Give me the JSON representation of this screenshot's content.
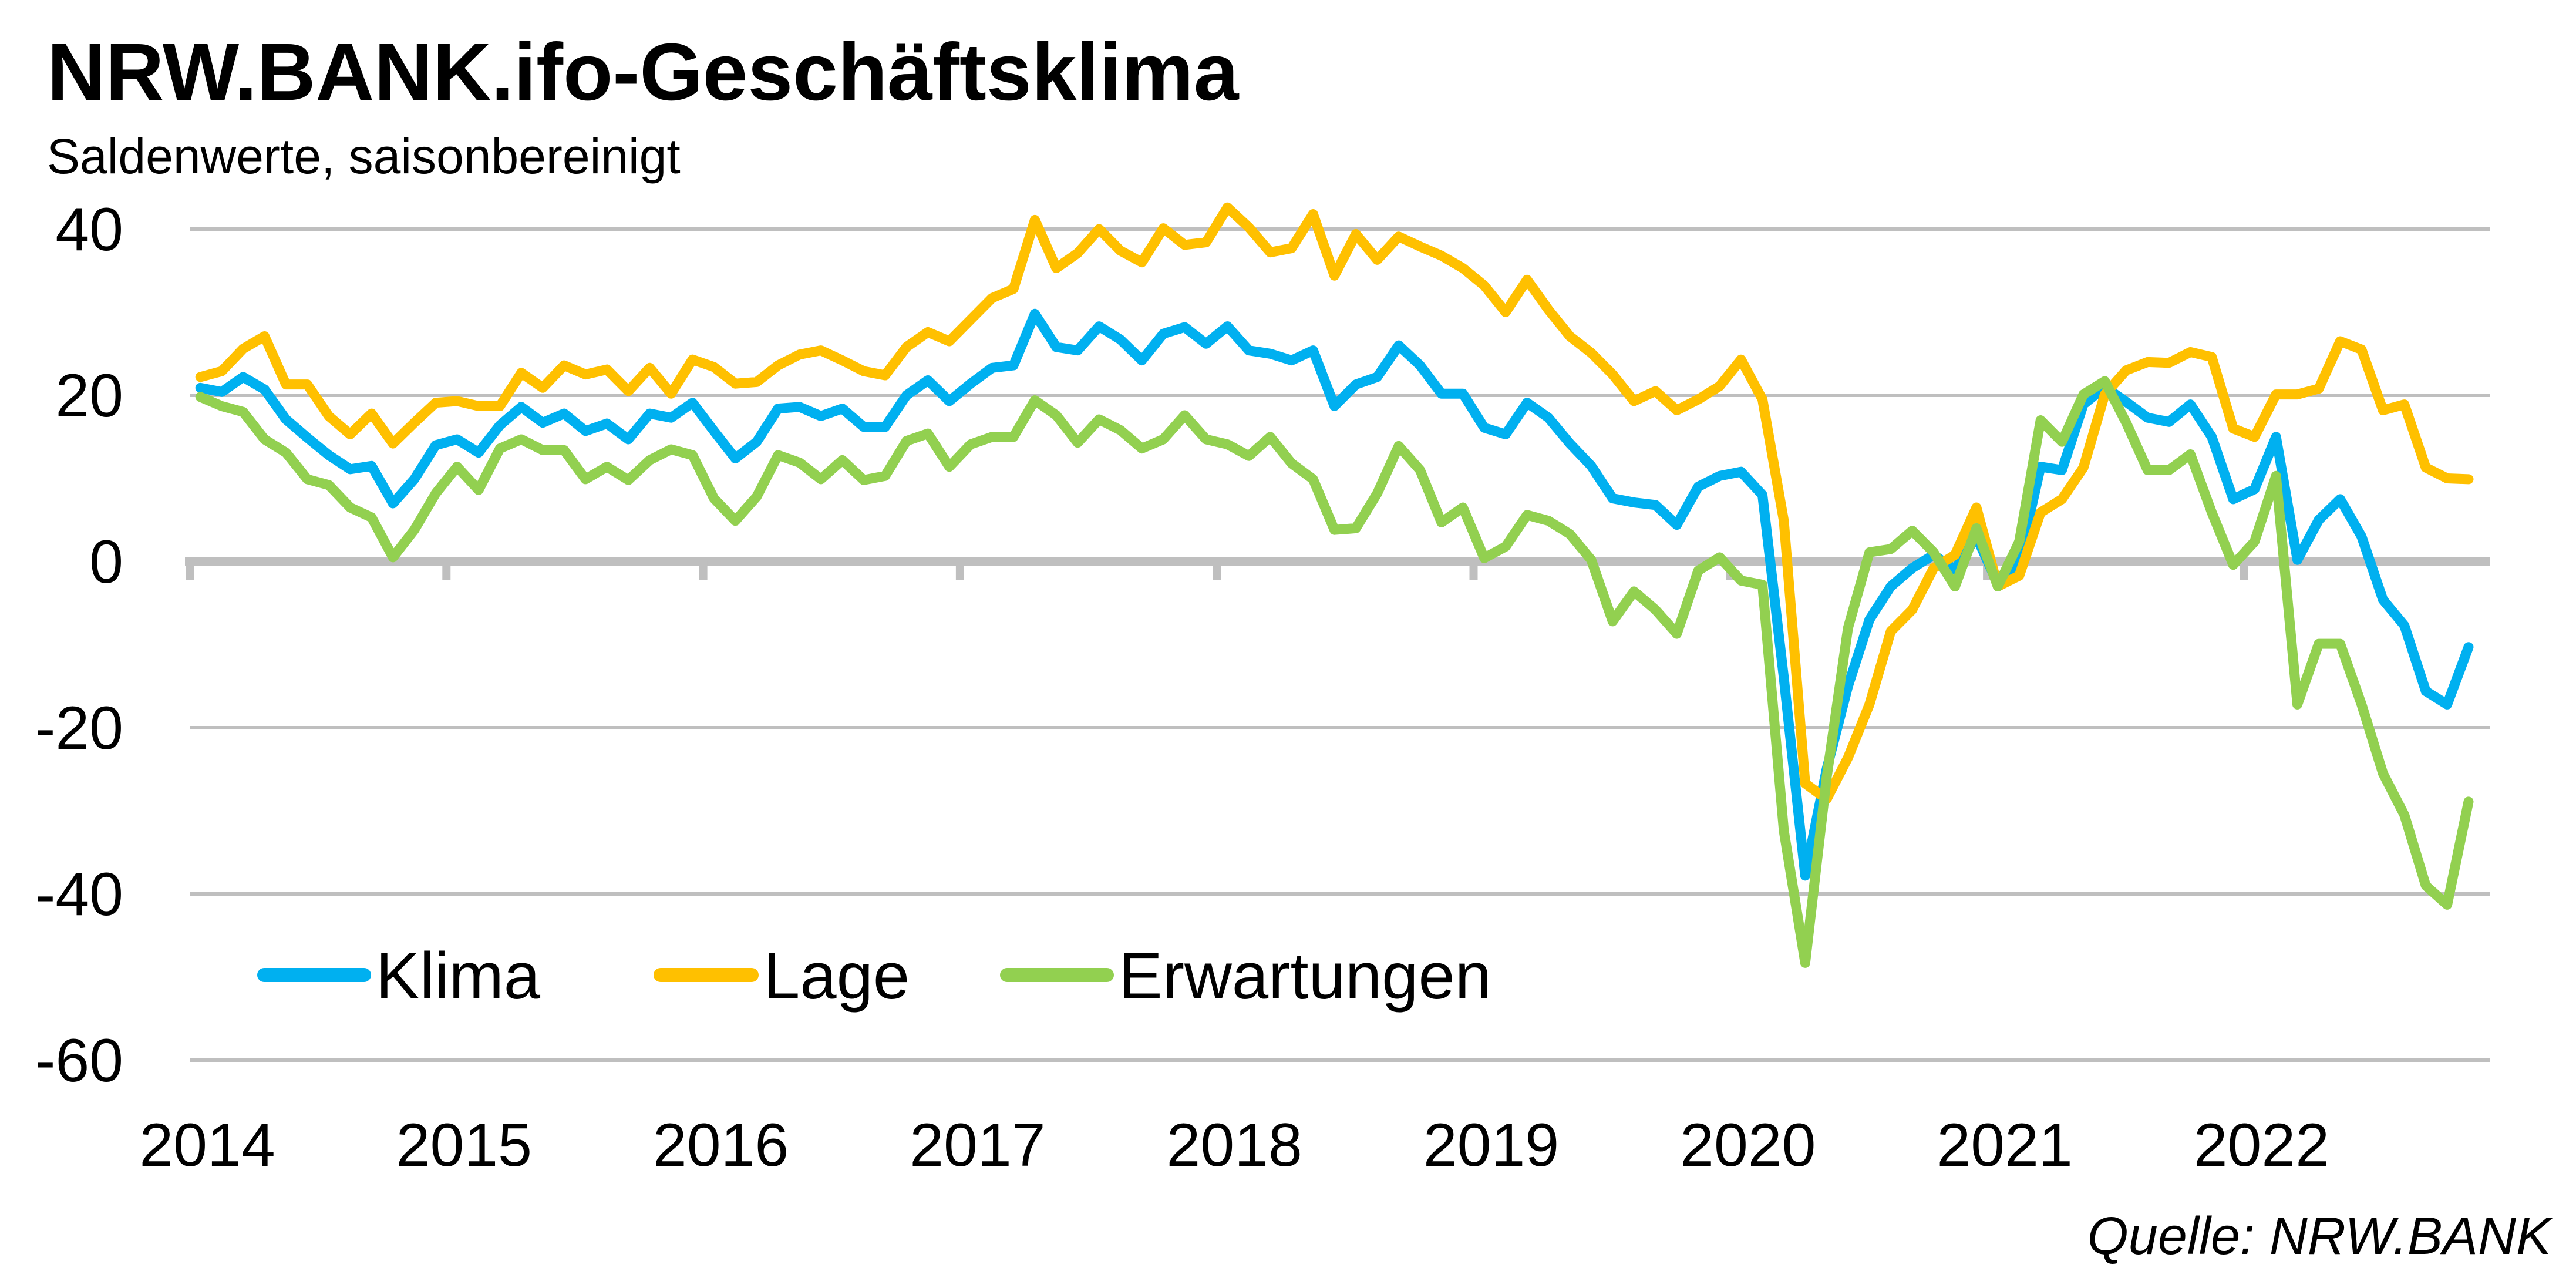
{
  "chart_data": {
    "type": "line",
    "title": "NRW.BANK.ifo-Geschäftsklima",
    "subtitle": "Saldenwerte, saisonbereinigt",
    "source": "Quelle: NRW.BANK",
    "xlabel": "",
    "ylabel": "",
    "x_start": "2014-01",
    "x_end": "2022-11",
    "x_frequency": "monthly",
    "x_tick_labels": [
      "2014",
      "2015",
      "2016",
      "2017",
      "2018",
      "2019",
      "2020",
      "2021",
      "2022"
    ],
    "ylim": [
      -60,
      40
    ],
    "y_ticks": [
      40,
      20,
      0,
      -20,
      -40,
      -60
    ],
    "y_tick_labels": [
      "40",
      "20",
      "0",
      "-20",
      "-40",
      "-60"
    ],
    "grid": "horizontal",
    "legend_position": "bottom-left",
    "series": [
      {
        "name": "Klima",
        "color": "#00B0F0",
        "values": [
          20.9,
          20.4,
          22.2,
          20.7,
          17.1,
          14.9,
          12.8,
          11.1,
          11.5,
          7,
          9.9,
          14,
          14.7,
          13.1,
          16.4,
          18.6,
          16.7,
          17.8,
          15.7,
          16.6,
          14.7,
          17.8,
          17.3,
          19.1,
          15.7,
          12.4,
          14.4,
          18.4,
          18.6,
          17.5,
          18.4,
          16.2,
          16.2,
          20,
          21.8,
          19.3,
          21.4,
          23.3,
          23.6,
          29.8,
          25.8,
          25.4,
          28.3,
          26.7,
          24.2,
          27.4,
          28.2,
          26.2,
          28.3,
          25.4,
          25,
          24.2,
          25.4,
          18.7,
          21.3,
          22.2,
          26,
          23.6,
          20.2,
          20.2,
          16.1,
          15.3,
          19.1,
          17.3,
          14.2,
          11.5,
          7.6,
          7.1,
          6.8,
          4.4,
          9,
          10.3,
          10.8,
          8,
          -14,
          -37.8,
          -25,
          -15,
          -7,
          -3,
          -0.8,
          0.8,
          -1,
          3,
          -2.7,
          0,
          11.4,
          11,
          18.9,
          21,
          19.2,
          17.3,
          16.8,
          18.9,
          15,
          7.5,
          8.7,
          15,
          0.2,
          5,
          7.5,
          3,
          -4.6,
          -7.7,
          -15.6,
          -17.2,
          -10.3
        ]
      },
      {
        "name": "Lage",
        "color": "#FFC000",
        "values": [
          22.2,
          22.9,
          25.6,
          27.1,
          21.3,
          21.3,
          17.5,
          15.3,
          17.8,
          14.2,
          16.7,
          19.1,
          19.3,
          18.7,
          18.7,
          22.7,
          20.9,
          23.6,
          22.5,
          23.1,
          20.5,
          23.3,
          20.2,
          24.3,
          23.4,
          21.4,
          21.6,
          23.6,
          24.9,
          25.4,
          24.2,
          22.9,
          22.4,
          25.8,
          27.6,
          26.5,
          29.1,
          31.7,
          32.8,
          41.1,
          35.3,
          37.1,
          40,
          37.4,
          36,
          40.1,
          38.1,
          38.4,
          42.6,
          40.2,
          37.2,
          37.7,
          41.8,
          34.4,
          39.4,
          36.3,
          39.1,
          37.9,
          36.8,
          35.3,
          33.2,
          30,
          33.9,
          30.3,
          27.1,
          25.1,
          22.5,
          19.3,
          20.5,
          18.2,
          19.5,
          21.1,
          24.3,
          19.5,
          4.9,
          -26.7,
          -28.6,
          -23.6,
          -17.2,
          -8.4,
          -5.8,
          -0.8,
          0.8,
          6.5,
          -3,
          -1.7,
          5.9,
          7.5,
          11.3,
          20.1,
          23,
          24,
          23.9,
          25.2,
          24.6,
          16,
          15,
          20.1,
          20.1,
          20.8,
          26.5,
          25.5,
          18.2,
          18.9,
          11.3,
          10,
          9.9
        ]
      },
      {
        "name": "Erwartungen",
        "color": "#92D050",
        "values": [
          19.8,
          18.7,
          18,
          14.7,
          13.1,
          9.9,
          9.2,
          6.5,
          5.3,
          0.5,
          3.8,
          8.2,
          11.4,
          8.6,
          13.6,
          14.7,
          13.4,
          13.4,
          9.9,
          11.4,
          9.8,
          12.2,
          13.5,
          12.8,
          7.6,
          4.9,
          7.8,
          12.8,
          11.9,
          9.9,
          12.2,
          9.8,
          10.3,
          14.5,
          15.4,
          11.4,
          14.1,
          15,
          15,
          19.4,
          17.6,
          14.3,
          17.1,
          15.8,
          13.6,
          14.7,
          17.6,
          14.7,
          14.1,
          12.7,
          15,
          11.8,
          9.9,
          3.8,
          4,
          8.2,
          13.9,
          11,
          4.7,
          6.5,
          0.4,
          1.8,
          5.6,
          4.9,
          3.3,
          0.2,
          -7.2,
          -3.6,
          -5.8,
          -8.7,
          -1.1,
          0.5,
          -2.3,
          -2.8,
          -32.4,
          -48.3,
          -26,
          -8,
          1.1,
          1.5,
          3.7,
          1.1,
          -3,
          4,
          -3,
          2.4,
          17,
          14.4,
          20.1,
          21.7,
          16.7,
          11,
          11,
          12.9,
          5.9,
          -0.4,
          2.4,
          10.3,
          -17.2,
          -9.9,
          -9.9,
          -17.2,
          -25.5,
          -30.5,
          -39,
          -41.3,
          -28.9
        ]
      }
    ],
    "colors": {
      "gridline": "#BFBFBF",
      "zero_line": "#BFBFBF"
    }
  }
}
